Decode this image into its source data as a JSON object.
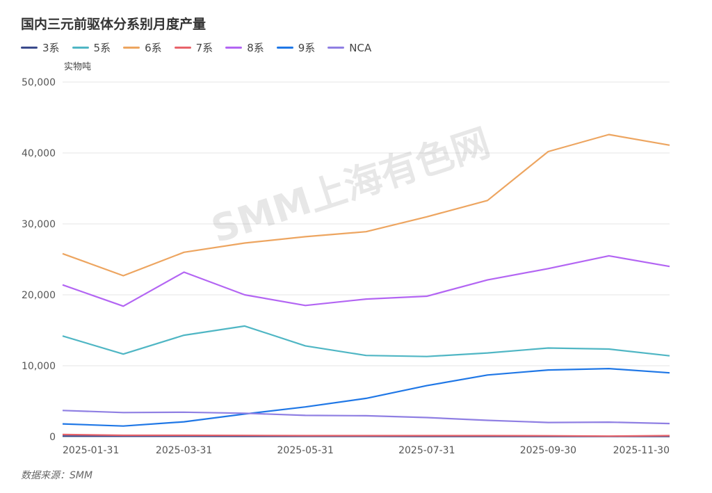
{
  "chart_data": {
    "type": "line",
    "title": "国内三元前驱体分系别月度产量",
    "ylabel": "实物吨",
    "ylim": [
      0,
      50000
    ],
    "yticks": [
      "0",
      "10,000",
      "20,000",
      "30,000",
      "40,000",
      "50,000"
    ],
    "categories": [
      "2025-01-31",
      "2025-02-28",
      "2025-03-31",
      "2025-04-30",
      "2025-05-31",
      "2025-06-30",
      "2025-07-31",
      "2025-08-31",
      "2025-09-30",
      "2025-10-31",
      "2025-11-30"
    ],
    "xtick_labels": [
      "2025-01-31",
      "2025-03-31",
      "2025-05-31",
      "2025-07-31",
      "2025-09-30",
      "2025-11-30"
    ],
    "series": [
      {
        "name": "3系",
        "color": "#3a4a8c",
        "values": [
          80,
          60,
          60,
          50,
          50,
          50,
          40,
          40,
          40,
          30,
          30
        ]
      },
      {
        "name": "5系",
        "color": "#4fb6c4",
        "values": [
          14200,
          11650,
          14300,
          15600,
          12800,
          11450,
          11300,
          11800,
          12500,
          12350,
          11400
        ]
      },
      {
        "name": "6系",
        "color": "#eda560",
        "values": [
          25800,
          22700,
          26000,
          27300,
          28200,
          28900,
          31000,
          33300,
          40200,
          42600,
          41100
        ]
      },
      {
        "name": "7系",
        "color": "#e8636a",
        "values": [
          300,
          200,
          200,
          180,
          150,
          150,
          150,
          150,
          130,
          80,
          150
        ]
      },
      {
        "name": "8系",
        "color": "#b365f3",
        "values": [
          21400,
          18400,
          23200,
          20000,
          18500,
          19400,
          19800,
          22100,
          23700,
          25500,
          24000
        ]
      },
      {
        "name": "9系",
        "color": "#1f77e6",
        "values": [
          1800,
          1500,
          2100,
          3200,
          4200,
          5400,
          7200,
          8700,
          9400,
          9600,
          9000
        ]
      },
      {
        "name": "NCA",
        "color": "#8f7fe3",
        "values": [
          3700,
          3400,
          3450,
          3300,
          3000,
          2950,
          2700,
          2300,
          2000,
          2050,
          1850
        ]
      }
    ]
  },
  "watermark": "SMM上海有色网",
  "source": "数据来源：SMM"
}
